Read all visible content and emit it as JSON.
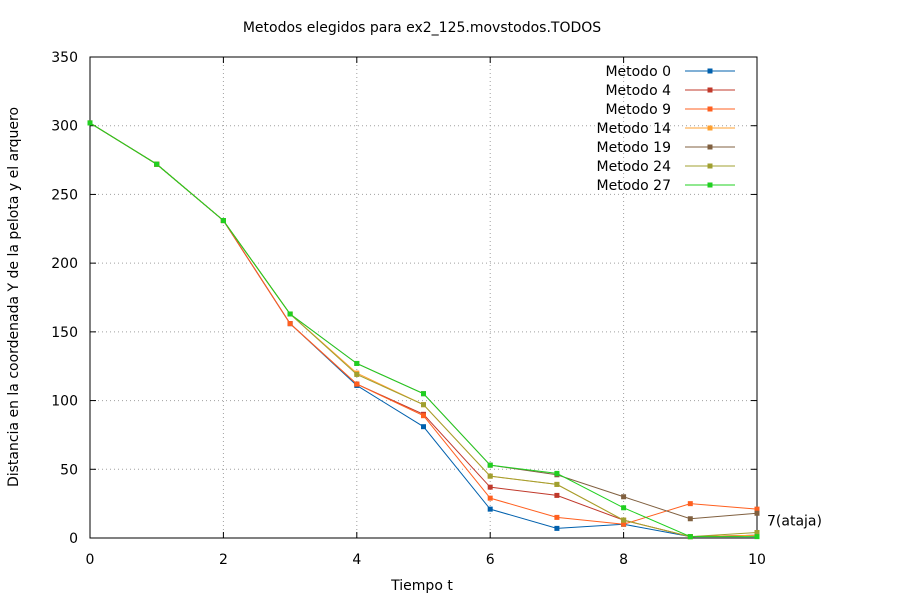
{
  "chart_data": {
    "type": "line",
    "title": "Metodos elegidos para ex2_125.movstodos.TODOS",
    "xlabel": "Tiempo t",
    "ylabel": "Distancia en la coordenada Y de la pelota y el arquero",
    "xlim": [
      0,
      10
    ],
    "ylim": [
      0,
      350
    ],
    "xticks": [
      0,
      2,
      4,
      6,
      8,
      10
    ],
    "yticks": [
      0,
      50,
      100,
      150,
      200,
      250,
      300,
      350
    ],
    "grid": true,
    "legend_position": "top-right",
    "annotation": {
      "text": "7(ataja)",
      "x": 10,
      "y": 7
    },
    "x": [
      0,
      1,
      2,
      3,
      4,
      5,
      6,
      7,
      8,
      9,
      10
    ],
    "series": [
      {
        "name": "Metodo 0",
        "color": "#0060ad",
        "values": [
          302,
          272,
          231,
          156,
          111,
          81,
          21,
          7,
          10,
          1,
          2
        ]
      },
      {
        "name": "Metodo 4",
        "color": "#c0392b",
        "values": [
          302,
          272,
          231,
          156,
          112,
          90,
          37,
          31,
          13,
          1,
          2
        ]
      },
      {
        "name": "Metodo 9",
        "color": "#ff6020",
        "values": [
          302,
          272,
          231,
          156,
          112,
          89,
          29,
          15,
          10,
          25,
          21
        ]
      },
      {
        "name": "Metodo 14",
        "color": "#ffa030",
        "values": [
          302,
          272,
          231,
          163,
          120,
          97,
          45,
          39,
          13,
          1,
          2
        ]
      },
      {
        "name": "Metodo 19",
        "color": "#806040",
        "values": [
          302,
          272,
          231,
          163,
          127,
          105,
          53,
          46,
          30,
          14,
          18
        ]
      },
      {
        "name": "Metodo 24",
        "color": "#a0a030",
        "values": [
          302,
          272,
          231,
          163,
          119,
          97,
          45,
          39,
          13,
          1,
          4
        ]
      },
      {
        "name": "Metodo 27",
        "color": "#20d020",
        "values": [
          302,
          272,
          231,
          163,
          127,
          105,
          53,
          47,
          22,
          1,
          1
        ]
      }
    ]
  }
}
